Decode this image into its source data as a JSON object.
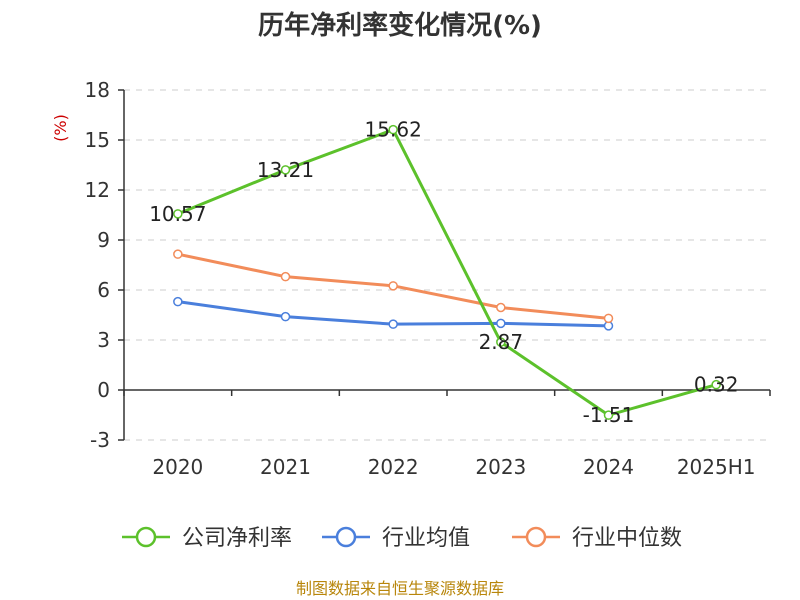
{
  "chart_data": {
    "type": "line",
    "title": "历年净利率变化情况(%)",
    "y_unit": "(%)",
    "categories": [
      "2020",
      "2021",
      "2022",
      "2023",
      "2024",
      "2025H1"
    ],
    "ylim": [
      -3,
      18
    ],
    "yticks": [
      -3,
      0,
      3,
      6,
      9,
      12,
      15,
      18
    ],
    "grid": true,
    "legend_position": "bottom",
    "series": [
      {
        "name": "公司净利率",
        "color": "#5cc12b",
        "values": [
          10.57,
          13.21,
          15.62,
          2.87,
          -1.51,
          0.32
        ],
        "labels": [
          "10.57",
          "13.21",
          "15.62",
          "2.87",
          "-1.51",
          "0.32"
        ]
      },
      {
        "name": "行业均值",
        "color": "#4a7fdc",
        "values": [
          5.3,
          4.4,
          3.95,
          4.0,
          3.85,
          null
        ]
      },
      {
        "name": "行业中位数",
        "color": "#f28c5a",
        "values": [
          8.15,
          6.8,
          6.25,
          4.95,
          4.3,
          null
        ]
      }
    ]
  },
  "source": "制图数据来自恒生聚源数据库"
}
